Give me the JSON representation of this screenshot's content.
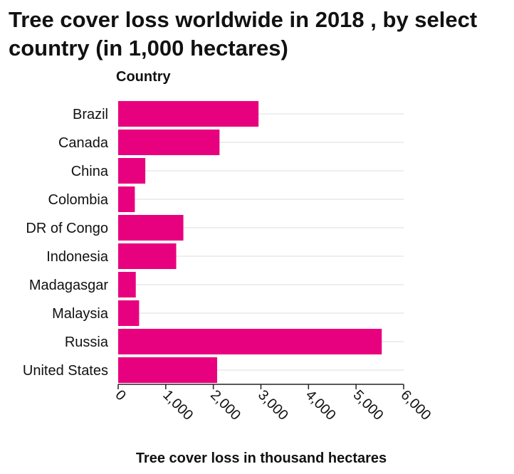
{
  "chart_data": {
    "type": "bar",
    "orientation": "horizontal",
    "title": "Tree cover loss worldwide in 2018 , by select country (in 1,000 hectares)",
    "ylabel": "Country",
    "xlabel": "Tree cover loss in thousand hectares",
    "categories": [
      "Brazil",
      "Canada",
      "China",
      "Colombia",
      "DR of Congo",
      "Indonesia",
      "Madagasgar",
      "Malaysia",
      "Russia",
      "United States"
    ],
    "values": [
      2950,
      2130,
      570,
      350,
      1370,
      1220,
      370,
      440,
      5540,
      2080
    ],
    "xlim": [
      0,
      6000
    ],
    "xticks": [
      "0",
      "1,000",
      "2,000",
      "3,000",
      "4,000",
      "5,000",
      "6,000"
    ],
    "bar_color": "#e8017f",
    "grid": true,
    "legend": "none"
  }
}
